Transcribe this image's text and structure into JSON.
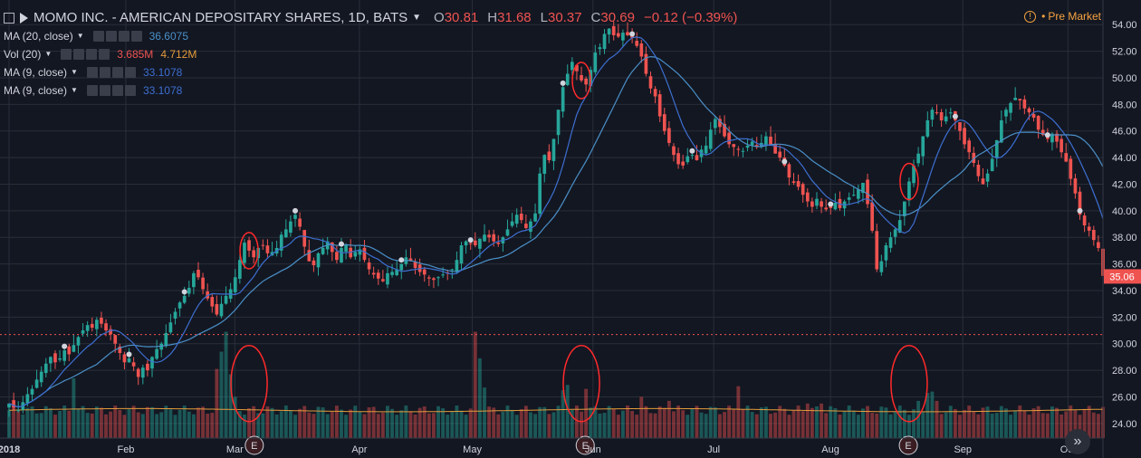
{
  "header": {
    "symbol": "MOMO INC. - AMERICAN DEPOSITARY SHARES, 1D, BATS",
    "o_label": "O",
    "o_value": "30.81",
    "h_label": "H",
    "h_value": "31.68",
    "l_label": "L",
    "l_value": "30.37",
    "c_label": "C",
    "c_value": "30.69",
    "change": "−0.12 (−0.39%)",
    "premarket": "Pre Market",
    "premarket_icon": "!"
  },
  "indicators": [
    {
      "name": "MA (20, close)",
      "values": [
        "36.6075"
      ],
      "colors": [
        "#4a90c8"
      ]
    },
    {
      "name": "Vol (20)",
      "values": [
        "3.685M",
        "4.712M"
      ],
      "colors": [
        "#ef5350",
        "#e39b3a"
      ]
    },
    {
      "name": "MA (9, close)",
      "values": [
        "33.1078"
      ],
      "colors": [
        "#3d6fd1"
      ]
    },
    {
      "name": "MA (9, close)",
      "values": [
        "33.1078"
      ],
      "colors": [
        "#3d6fd1"
      ]
    }
  ],
  "price_tag": "35.06",
  "earnings_label": "E",
  "scroll_icon": "»",
  "chart_data": {
    "type": "candlestick",
    "ylim": [
      22.9,
      54.9
    ],
    "y_ticks": [
      "24.00",
      "26.00",
      "28.00",
      "30.00",
      "32.00",
      "34.00",
      "36.00",
      "38.00",
      "40.00",
      "42.00",
      "44.00",
      "46.00",
      "48.00",
      "50.00",
      "52.00",
      "54.00"
    ],
    "x_ticks": [
      {
        "label": "2018",
        "date": "2018-01-02"
      },
      {
        "label": "Feb",
        "date": "2018-02-01"
      },
      {
        "label": "Mar",
        "date": "2018-03-01"
      },
      {
        "label": "Apr",
        "date": "2018-04-02"
      },
      {
        "label": "May",
        "date": "2018-05-01"
      },
      {
        "label": "Jun",
        "date": "2018-06-01"
      },
      {
        "label": "Jul",
        "date": "2018-07-02"
      },
      {
        "label": "Aug",
        "date": "2018-08-01"
      },
      {
        "label": "Sep",
        "date": "2018-09-04"
      },
      {
        "label": "Oct",
        "date": "2018-10-01"
      }
    ],
    "close_path": [
      25.5,
      25.2,
      25.0,
      25.6,
      26.2,
      26.6,
      27.3,
      27.9,
      28.5,
      29.0,
      28.6,
      28.9,
      29.5,
      29.2,
      29.9,
      30.5,
      31.0,
      31.4,
      31.2,
      31.8,
      31.5,
      31.0,
      30.7,
      30.0,
      29.3,
      28.6,
      28.9,
      28.3,
      27.5,
      28.2,
      28.0,
      29.0,
      29.6,
      30.0,
      30.8,
      31.6,
      32.4,
      33.1,
      33.6,
      34.2,
      35.3,
      35.0,
      34.1,
      33.4,
      32.8,
      32.2,
      33.0,
      33.6,
      34.1,
      35.0,
      36.3,
      37.6,
      37.0,
      36.5,
      37.2,
      37.4,
      36.8,
      36.9,
      37.2,
      38.2,
      38.6,
      39.2,
      39.7,
      38.8,
      37.3,
      36.2,
      35.9,
      36.8,
      37.2,
      37.7,
      36.9,
      36.3,
      37.2,
      37.4,
      36.5,
      36.9,
      37.1,
      36.3,
      35.6,
      35.2,
      34.9,
      34.7,
      35.3,
      35.4,
      35.6,
      36.0,
      36.5,
      36.2,
      35.7,
      35.4,
      35.2,
      34.9,
      34.8,
      35.0,
      35.2,
      35.3,
      35.6,
      36.3,
      37.4,
      37.7,
      37.5,
      37.4,
      37.9,
      38.2,
      38.0,
      37.7,
      37.5,
      38.0,
      38.6,
      39.2,
      39.7,
      39.3,
      38.7,
      39.2,
      39.8,
      42.8,
      44.2,
      43.8,
      45.4,
      47.6,
      49.3,
      50.3,
      51.2,
      50.5,
      49.8,
      49.5,
      50.6,
      51.9,
      52.3,
      53.3,
      53.7,
      53.2,
      53.1,
      53.4,
      53.2,
      53.0,
      52.4,
      51.6,
      50.3,
      49.2,
      48.6,
      47.1,
      46.0,
      45.1,
      44.2,
      43.5,
      43.4,
      44.1,
      44.2,
      43.8,
      44.6,
      44.9,
      46.1,
      46.9,
      46.3,
      45.6,
      45.0,
      44.8,
      44.6,
      44.5,
      44.9,
      45.2,
      44.8,
      45.1,
      45.6,
      44.9,
      44.3,
      44.0,
      43.4,
      42.5,
      42.1,
      41.8,
      41.2,
      40.7,
      40.3,
      40.9,
      40.3,
      40.1,
      40.2,
      40.6,
      40.2,
      40.7,
      41.0,
      41.2,
      41.6,
      42.1,
      40.5,
      38.5,
      35.6,
      36.2,
      37.4,
      38.0,
      38.6,
      39.3,
      40.7,
      42.2,
      43.4,
      44.3,
      45.6,
      46.8,
      47.6,
      47.4,
      46.8,
      47.1,
      47.4,
      46.8,
      46.0,
      45.0,
      44.4,
      43.6,
      42.6,
      42.0,
      42.8,
      43.9,
      45.3,
      46.8,
      47.6,
      48.1,
      48.5,
      48.3,
      47.7,
      47.4,
      47.0,
      46.1,
      45.7,
      45.4,
      45.8,
      45.2,
      44.4,
      43.7,
      42.4,
      41.3,
      39.7,
      38.9,
      38.5,
      37.8,
      37.2,
      35.1
    ],
    "volume": {
      "avg": 24.9,
      "spikes": [
        [
          14,
          27.4
        ],
        [
          45,
          28.1
        ],
        [
          46,
          29.4
        ],
        [
          47,
          30.9
        ],
        [
          48,
          27.7
        ],
        [
          49,
          26.0
        ],
        [
          101,
          30.9
        ],
        [
          102,
          28.9
        ],
        [
          103,
          26.7
        ],
        [
          120,
          26.5
        ],
        [
          121,
          26.9
        ],
        [
          125,
          26.6
        ],
        [
          137,
          26.0
        ],
        [
          143,
          25.7
        ],
        [
          158,
          26.8
        ],
        [
          173,
          25.5
        ],
        [
          176,
          25.5
        ],
        [
          197,
          25.7
        ],
        [
          199,
          26.3
        ],
        [
          200,
          26.4
        ],
        [
          201,
          25.7
        ]
      ]
    },
    "earnings_dates": [
      "2018-03-06",
      "2018-05-30",
      "2018-08-21"
    ],
    "annotations": [
      "2018-03-05",
      "2018-05-29",
      "2018-08-21"
    ],
    "colors": {
      "up": "#26a69a",
      "down": "#ef5350",
      "ma20": "#4a90c8",
      "ma9": "#3d6fd1",
      "vol_ma": "#e39b3a"
    },
    "last_price": 35.06,
    "ref_line": 30.69
  }
}
